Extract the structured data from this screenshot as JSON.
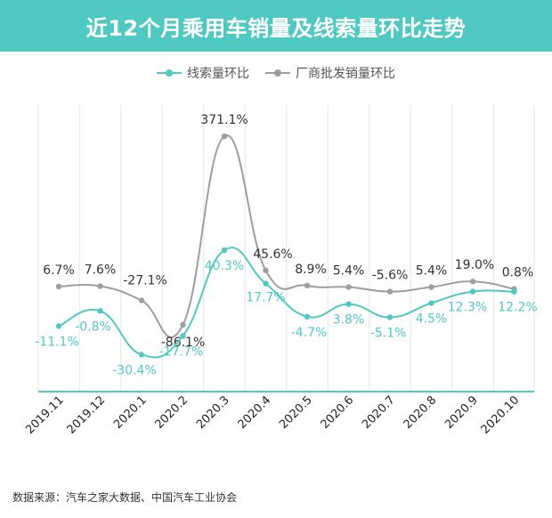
{
  "chart_data": {
    "type": "line",
    "title": "近12个月乘用车销量及线索量环比走势",
    "categories": [
      "2019.11",
      "2019.12",
      "2020.1",
      "2020.2",
      "2020.3",
      "2020.4",
      "2020.5",
      "2020.6",
      "2020.7",
      "2020.8",
      "2020.9",
      "2020.10"
    ],
    "series": [
      {
        "name": "线索量环比",
        "color": "#4fc9c2",
        "values": [
          -11.1,
          -0.8,
          -30.4,
          -17.7,
          40.3,
          17.7,
          -4.7,
          3.8,
          -5.1,
          4.5,
          12.3,
          12.2
        ],
        "labels": [
          "-11.1%",
          "-0.8%",
          "-30.4%",
          "-17.7%",
          "40.3%",
          "17.7%",
          "-4.7%",
          "3.8%",
          "-5.1%",
          "4.5%",
          "12.3%",
          "12.2%"
        ]
      },
      {
        "name": "厂商批发销量环比",
        "color": "#9e9e9e",
        "values": [
          6.7,
          7.6,
          -27.1,
          -86.1,
          371.1,
          45.6,
          8.9,
          5.4,
          -5.6,
          5.4,
          19.0,
          0.8
        ],
        "labels": [
          "6.7%",
          "7.6%",
          "-27.1%",
          "-86.1%",
          "371.1%",
          "45.6%",
          "8.9%",
          "5.4%",
          "-5.6%",
          "5.4%",
          "19.0%",
          "0.8%"
        ]
      }
    ],
    "xlabel": "",
    "ylabel": "",
    "grid": true,
    "legend": "top-center"
  },
  "source": "数据来源：汽车之家大数据、中国汽车工业协会"
}
